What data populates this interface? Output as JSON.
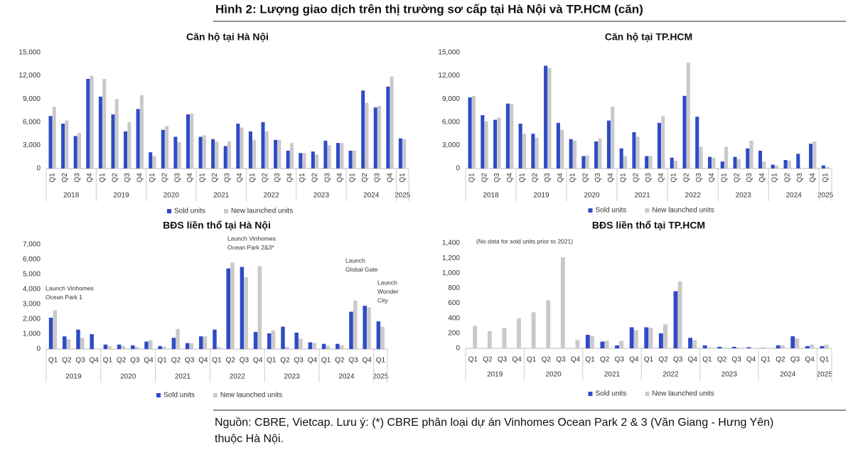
{
  "title": "Hình 2: Lượng giao dịch trên thị trường sơ cấp tại Hà Nội và TP.HCM (căn)",
  "note": [
    "Nguồn: CBRE, Vietcap. Lưu ý: (*) CBRE phân loại dự án Vinhomes Ocean Park 2 & 3 (Văn Giang - Hưng Yên)",
    "thuộc Hà Nội."
  ],
  "chart_data": [
    {
      "type": "bar",
      "title": "Căn hộ tại Hà Nội",
      "categories": [
        "Q1",
        "Q2",
        "Q3",
        "Q4",
        "Q1",
        "Q2",
        "Q3",
        "Q4",
        "Q1",
        "Q2",
        "Q3",
        "Q4",
        "Q1",
        "Q2",
        "Q3",
        "Q4",
        "Q1",
        "Q2",
        "Q3",
        "Q4",
        "Q1",
        "Q2",
        "Q3",
        "Q4",
        "Q1",
        "Q2",
        "Q3",
        "Q4",
        "Q1"
      ],
      "years": [
        "2018",
        "2019",
        "2020",
        "2021",
        "2022",
        "2023",
        "2024",
        "2025"
      ],
      "series": [
        {
          "name": "Sold units",
          "color": "#2e4bc6",
          "values": [
            6800,
            5800,
            4200,
            11600,
            9300,
            7000,
            4800,
            7700,
            2100,
            5000,
            4100,
            7000,
            4100,
            3800,
            2900,
            5800,
            4800,
            6000,
            3700,
            2300,
            2000,
            2200,
            3600,
            3300,
            2300,
            10100,
            7900,
            10600,
            3900
          ]
        },
        {
          "name": "New launched units",
          "color": "#c9c9c9",
          "values": [
            8000,
            6200,
            4600,
            12000,
            11600,
            9000,
            6000,
            9500,
            1600,
            5500,
            3400,
            7100,
            4300,
            3500,
            3500,
            5300,
            3700,
            4800,
            3700,
            3300,
            2000,
            1800,
            3000,
            3300,
            2300,
            8500,
            8100,
            11900,
            3800
          ]
        }
      ],
      "ylim": [
        0,
        15000
      ],
      "yticks": [
        0,
        {
          "value": 3000,
          "label": "3,000"
        },
        {
          "value": 6000,
          "label": "6,000"
        },
        {
          "value": 9000,
          "label": "9,000"
        },
        {
          "value": 12000,
          "label": "12,000"
        },
        {
          "value": 15000,
          "label": "15,000"
        }
      ],
      "legend": "bottom"
    },
    {
      "type": "bar",
      "title": "Căn hộ tại TP.HCM",
      "categories": [
        "Q1",
        "Q2",
        "Q3",
        "Q4",
        "Q1",
        "Q2",
        "Q3",
        "Q4",
        "Q1",
        "Q2",
        "Q3",
        "Q4",
        "Q1",
        "Q2",
        "Q3",
        "Q4",
        "Q1",
        "Q2",
        "Q3",
        "Q4",
        "Q1",
        "Q2",
        "Q3",
        "Q4",
        "Q1",
        "Q2",
        "Q3",
        "Q4",
        "Q1"
      ],
      "years": [
        "2018",
        "2019",
        "2020",
        "2021",
        "2022",
        "2023",
        "2024",
        "2025"
      ],
      "series": [
        {
          "name": "Sold units",
          "color": "#2e4bc6",
          "values": [
            9200,
            6900,
            6300,
            8400,
            5800,
            4500,
            13300,
            5900,
            3800,
            1600,
            3500,
            6200,
            2600,
            4700,
            1600,
            5900,
            1400,
            9400,
            6700,
            1500,
            900,
            1500,
            2600,
            2300,
            500,
            1100,
            1900,
            3200,
            400
          ]
        },
        {
          "name": "New launched units",
          "color": "#c9c9c9",
          "values": [
            9400,
            6100,
            6600,
            8400,
            4500,
            4000,
            13000,
            5000,
            3600,
            1700,
            3900,
            8000,
            1600,
            4100,
            1600,
            6800,
            1000,
            13700,
            2800,
            1400,
            2800,
            1200,
            3600,
            900,
            400,
            1000,
            0,
            3500,
            200
          ]
        }
      ],
      "ylim": [
        0,
        15000
      ],
      "yticks": [
        0,
        {
          "value": 3000,
          "label": "3,000"
        },
        {
          "value": 6000,
          "label": "6,000"
        },
        {
          "value": 9000,
          "label": "9,000"
        },
        {
          "value": 12000,
          "label": "12,000"
        },
        {
          "value": 15000,
          "label": "15,000"
        }
      ],
      "legend": "bottom"
    },
    {
      "type": "bar",
      "title": "BĐS liền thổ tại Hà Nội",
      "categories": [
        "Q1",
        "Q2",
        "Q3",
        "Q4",
        "Q1",
        "Q2",
        "Q3",
        "Q4",
        "Q1",
        "Q2",
        "Q3",
        "Q4",
        "Q1",
        "Q2",
        "Q3",
        "Q4",
        "Q1",
        "Q2",
        "Q3",
        "Q4",
        "Q1",
        "Q2",
        "Q3",
        "Q4",
        "Q1"
      ],
      "years": [
        "2019",
        "2020",
        "2021",
        "2022",
        "2023",
        "2024",
        "2025"
      ],
      "series": [
        {
          "name": "Sold units",
          "color": "#2e4bc6",
          "values": [
            2100,
            850,
            1300,
            1000,
            300,
            300,
            250,
            500,
            200,
            750,
            400,
            850,
            1300,
            5400,
            5500,
            1150,
            1050,
            1500,
            1100,
            450,
            350,
            350,
            2500,
            2900,
            1850
          ]
        },
        {
          "name": "New launched units",
          "color": "#c9c9c9",
          "values": [
            2600,
            650,
            750,
            0,
            200,
            200,
            150,
            600,
            150,
            1350,
            400,
            850,
            150,
            5800,
            4800,
            5550,
            1250,
            150,
            700,
            400,
            200,
            250,
            3250,
            2800,
            1500
          ]
        }
      ],
      "ylim": [
        0,
        7000
      ],
      "yticks": [
        0,
        {
          "value": 1000,
          "label": "1,000"
        },
        {
          "value": 2000,
          "label": "2,000"
        },
        {
          "value": 3000,
          "label": "3,000"
        },
        {
          "value": 4000,
          "label": "4,000"
        },
        {
          "value": 5000,
          "label": "5,000"
        },
        {
          "value": 6000,
          "label": "6,000"
        },
        {
          "value": 7000,
          "label": "7,000"
        }
      ],
      "annotations": [
        [
          "Launch Vinhomes",
          "Ocean Park 1"
        ],
        [
          "Launch Vinhomes",
          "Ocean Park 2&3*"
        ],
        [
          "Launch",
          "Global Gate"
        ],
        [
          "Launch",
          "Wonder",
          "City"
        ]
      ],
      "legend": "bottom"
    },
    {
      "type": "bar",
      "title": "BĐS liền thổ tại TP.HCM",
      "categories": [
        "Q1",
        "Q2",
        "Q3",
        "Q4",
        "Q1",
        "Q2",
        "Q3",
        "Q4",
        "Q1",
        "Q2",
        "Q3",
        "Q4",
        "Q1",
        "Q2",
        "Q3",
        "Q4",
        "Q1",
        "Q2",
        "Q3",
        "Q4",
        "Q1",
        "Q2",
        "Q3",
        "Q4",
        "Q1"
      ],
      "years": [
        "2019",
        "2020",
        "2021",
        "2022",
        "2023",
        "2024",
        "2025"
      ],
      "series": [
        {
          "name": "Sold units",
          "color": "#2e4bc6",
          "values": [
            null,
            null,
            null,
            null,
            null,
            null,
            null,
            null,
            180,
            90,
            40,
            280,
            280,
            200,
            760,
            140,
            40,
            20,
            20,
            15,
            5,
            40,
            160,
            30,
            30
          ]
        },
        {
          "name": "New launched units",
          "color": "#c9c9c9",
          "values": [
            300,
            230,
            270,
            400,
            480,
            640,
            1210,
            110,
            160,
            100,
            100,
            240,
            270,
            320,
            890,
            110,
            10,
            10,
            10,
            5,
            5,
            40,
            130,
            50,
            50
          ]
        }
      ],
      "ylim": [
        0,
        1400
      ],
      "yticks": [
        0,
        200,
        400,
        600,
        800,
        {
          "value": 1000,
          "label": "1,000"
        },
        {
          "value": 1200,
          "label": "1,200"
        },
        {
          "value": 1400,
          "label": "1,400"
        }
      ],
      "annotations": [
        [
          "(No data for sold units prior to 2021)"
        ]
      ],
      "legend": "bottom"
    }
  ]
}
